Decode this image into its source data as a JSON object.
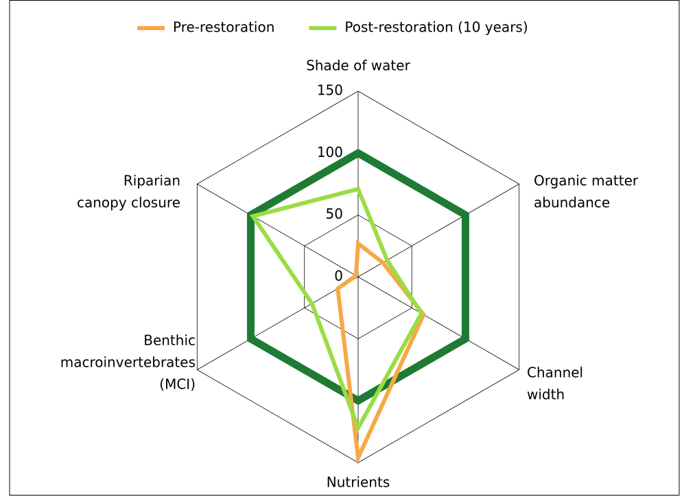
{
  "chart_data": {
    "type": "radar",
    "categories": [
      [
        "Shade of water"
      ],
      [
        "Organic matter",
        "abundance"
      ],
      [
        "Channel",
        "width"
      ],
      [
        "Nutrients"
      ],
      [
        "Benthic",
        "macroinvertebrates",
        "(MCI)"
      ],
      [
        "Riparian",
        "canopy closure"
      ]
    ],
    "series": [
      {
        "color": "#1e7b34",
        "values": [
          100,
          100,
          100,
          100,
          100,
          100
        ]
      },
      {
        "name": "Pre-restoration",
        "color": "#f6a947",
        "values": [
          27,
          23,
          61,
          146,
          19,
          2
        ]
      },
      {
        "name": "Post-restoration (10 years)",
        "color": "#9bdc45",
        "values": [
          71,
          27,
          59,
          122,
          43,
          98
        ]
      }
    ],
    "ylim": [
      0,
      150
    ],
    "yticks": [
      0,
      50,
      100,
      150
    ],
    "grid": true,
    "legend": "top"
  }
}
